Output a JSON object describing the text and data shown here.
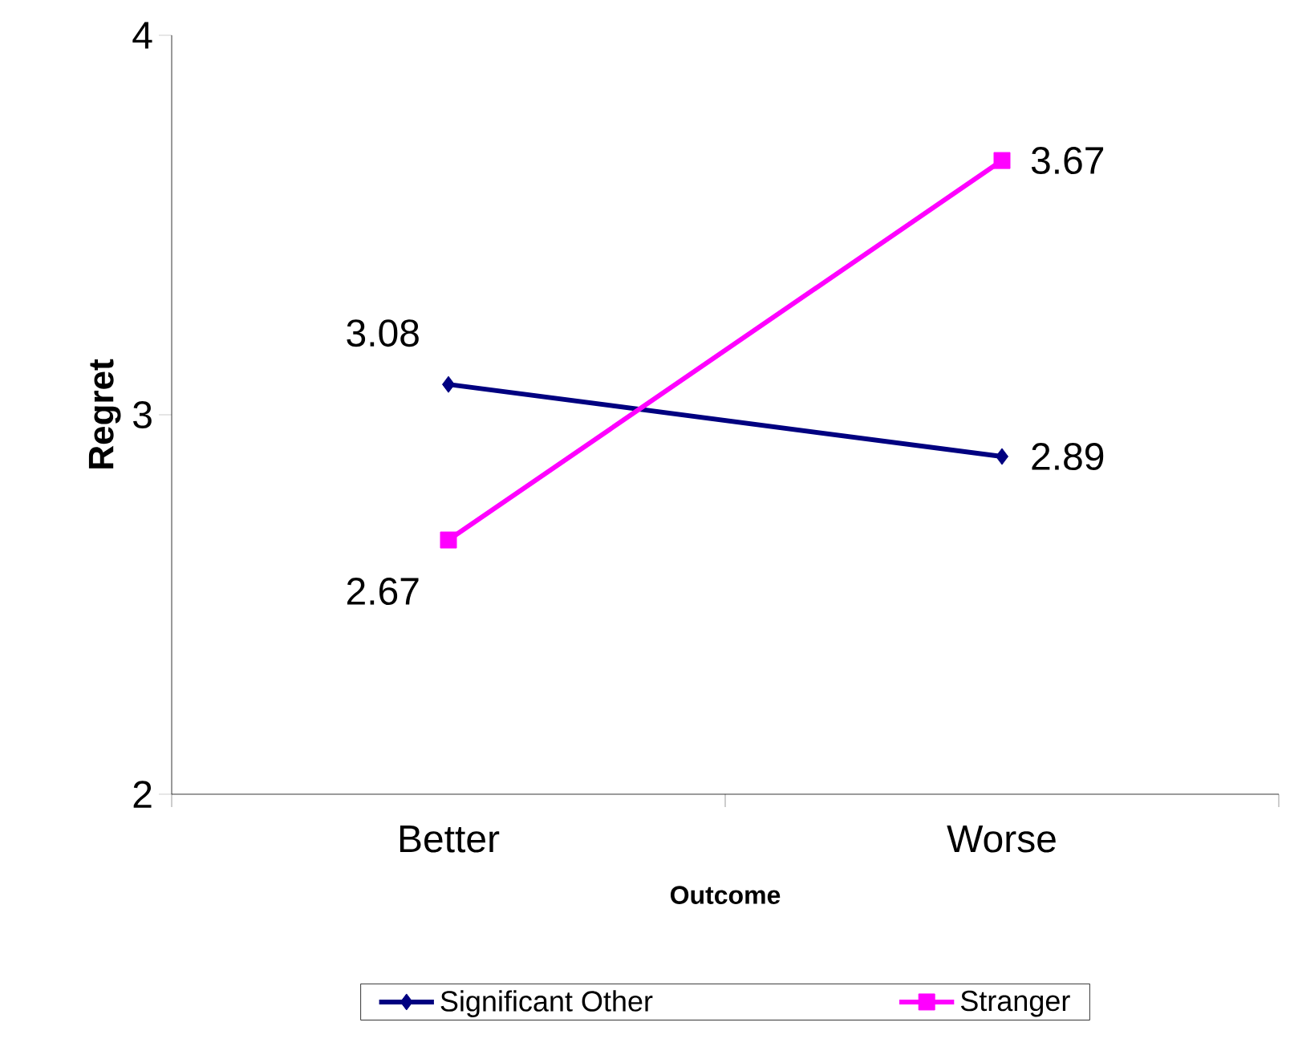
{
  "chart_data": {
    "type": "line",
    "xlabel": "Outcome",
    "ylabel": "Regret",
    "categories": [
      "Better",
      "Worse"
    ],
    "series": [
      {
        "name": "Significant Other",
        "color": "#000080",
        "values": [
          3.08,
          2.89
        ],
        "marker": "diamond"
      },
      {
        "name": "Stranger",
        "color": "#ff00ff",
        "values": [
          2.67,
          3.67
        ],
        "marker": "square"
      }
    ],
    "ylim": [
      2,
      4
    ],
    "yticks": [
      2,
      3,
      4
    ],
    "data_labels": true,
    "legend": "bottom",
    "grid": false,
    "line_style": "solid"
  }
}
